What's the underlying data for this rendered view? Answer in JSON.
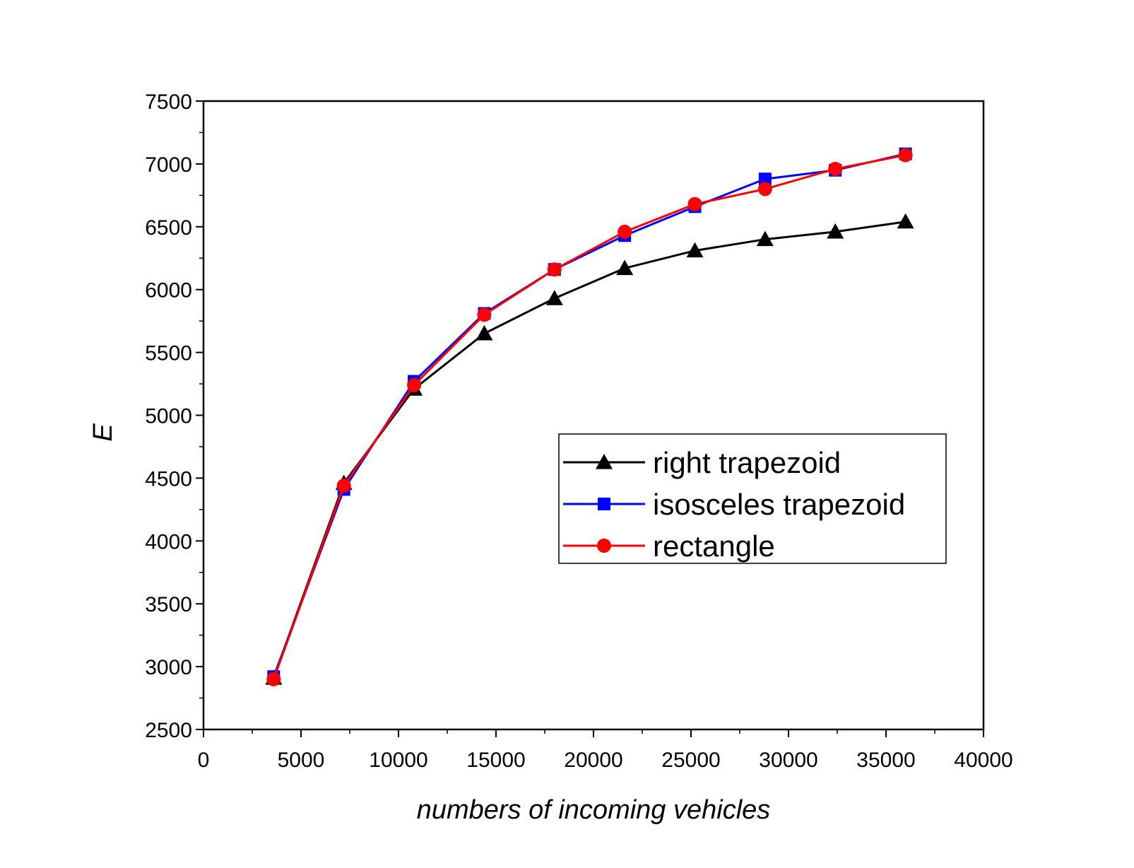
{
  "chart_data": {
    "type": "line",
    "title": "",
    "xlabel": "numbers of incoming vehicles",
    "ylabel": "E",
    "xlim": [
      0,
      40000
    ],
    "ylim": [
      2500,
      7500
    ],
    "x_ticks": [
      0,
      5000,
      10000,
      15000,
      20000,
      25000,
      30000,
      35000,
      40000
    ],
    "y_ticks": [
      2500,
      3000,
      3500,
      4000,
      4500,
      5000,
      5500,
      6000,
      6500,
      7000,
      7500
    ],
    "x_tick_labels": [
      "0",
      "5000",
      "10000",
      "15000",
      "20000",
      "25000",
      "30000",
      "35000",
      "40000"
    ],
    "y_tick_labels": [
      "2500",
      "3000",
      "3500",
      "4000",
      "4500",
      "5000",
      "5500",
      "6000",
      "6500",
      "7000",
      "7500"
    ],
    "grid": false,
    "legend_position": "center-right",
    "x": [
      3600,
      7200,
      10800,
      14400,
      18000,
      21600,
      25200,
      28800,
      32400,
      36000
    ],
    "series": [
      {
        "name": "right trapezoid",
        "color": "#000000",
        "marker": "triangle",
        "values": [
          2910,
          4460,
          5210,
          5650,
          5930,
          6170,
          6310,
          6400,
          6460,
          6540
        ]
      },
      {
        "name": "isosceles trapezoid",
        "color": "#0000ff",
        "marker": "square",
        "values": [
          2920,
          4410,
          5270,
          5810,
          6160,
          6430,
          6660,
          6880,
          6950,
          7080
        ]
      },
      {
        "name": "rectangle",
        "color": "#ff0000",
        "marker": "circle",
        "values": [
          2900,
          4440,
          5240,
          5800,
          6160,
          6460,
          6680,
          6800,
          6960,
          7070
        ]
      }
    ]
  }
}
